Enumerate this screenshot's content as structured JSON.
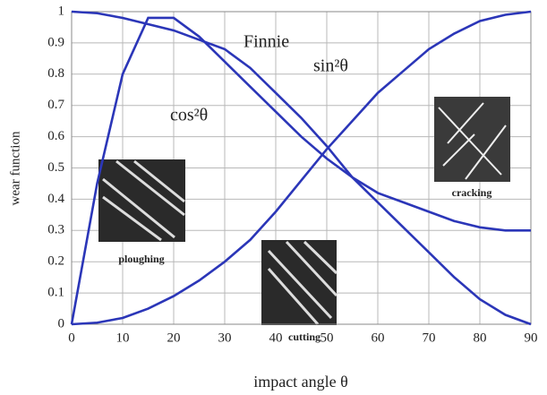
{
  "chart_data": {
    "type": "line",
    "x": [
      0,
      5,
      10,
      15,
      20,
      25,
      30,
      35,
      40,
      45,
      50,
      55,
      60,
      65,
      70,
      75,
      80,
      85,
      90
    ],
    "series": [
      {
        "name": "cos²θ",
        "color": "#2b36b8",
        "values": [
          1,
          0.995,
          0.98,
          0.96,
          0.94,
          0.91,
          0.88,
          0.82,
          0.74,
          0.66,
          0.57,
          0.47,
          0.39,
          0.31,
          0.23,
          0.15,
          0.08,
          0.03,
          0
        ]
      },
      {
        "name": "sin²θ",
        "color": "#2b36b8",
        "values": [
          0,
          0.005,
          0.02,
          0.05,
          0.09,
          0.14,
          0.2,
          0.27,
          0.36,
          0.46,
          0.56,
          0.65,
          0.74,
          0.81,
          0.88,
          0.93,
          0.97,
          0.99,
          1
        ]
      },
      {
        "name": "Finnie",
        "color": "#2b36b8",
        "values": [
          0,
          0.45,
          0.8,
          0.98,
          0.98,
          0.92,
          0.84,
          0.76,
          0.68,
          0.6,
          0.53,
          0.47,
          0.42,
          0.39,
          0.36,
          0.33,
          0.31,
          0.3,
          0.3
        ]
      }
    ],
    "xlabel": "impact angle θ",
    "ylabel": "wear function",
    "xlim": [
      0,
      90
    ],
    "xticks": [
      0,
      10,
      20,
      30,
      40,
      50,
      60,
      70,
      80,
      90
    ],
    "ylim": [
      0,
      1
    ],
    "yticks": [
      0,
      0.1,
      0.2,
      0.3,
      0.4,
      0.5,
      0.6,
      0.7,
      0.8,
      0.9,
      1
    ],
    "grid": true,
    "annotations": [
      "ploughing",
      "cutting",
      "cracking"
    ]
  }
}
